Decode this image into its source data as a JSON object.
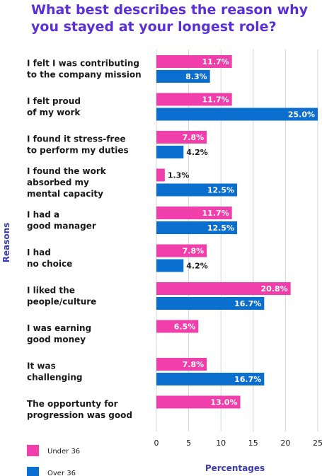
{
  "chart_data": {
    "type": "bar",
    "orientation": "horizontal",
    "title": "What best describes the reason why you stayed at your longest role?",
    "xlabel": "Percentages",
    "ylabel": "Reasons",
    "xlim": [
      0,
      25
    ],
    "xticks": [
      "0",
      "5",
      "10",
      "15",
      "20",
      "25"
    ],
    "grid": true,
    "legend_position": "bottom-left",
    "categories": [
      [
        "I felt I was contributing",
        "to the company mission"
      ],
      [
        "I felt proud",
        "of my work"
      ],
      [
        "I found it stress-free",
        "to perform my duties"
      ],
      [
        "I found the work",
        "absorbed my",
        "mental capacity"
      ],
      [
        "I had a",
        "good manager"
      ],
      [
        "I had",
        "no choice"
      ],
      [
        "I liked the",
        "people/culture"
      ],
      [
        "I was earning",
        "good money"
      ],
      [
        "It was",
        "challenging"
      ],
      [
        "The opportunty for",
        "progression was good"
      ]
    ],
    "series": [
      {
        "name": "Under 36",
        "color": "#f03eab",
        "values": [
          11.7,
          11.7,
          7.8,
          1.3,
          11.7,
          7.8,
          20.8,
          6.5,
          7.8,
          13.0
        ],
        "labels": [
          "11.7%",
          "11.7%",
          "7.8%",
          "1.3%",
          "11.7%",
          "7.8%",
          "20.8%",
          "6.5%",
          "7.8%",
          "13.0%"
        ]
      },
      {
        "name": "Over 36",
        "color": "#0b6fcf",
        "values": [
          8.3,
          25.0,
          4.2,
          12.5,
          12.5,
          4.2,
          16.7,
          null,
          16.7,
          null
        ],
        "labels": [
          "8.3%",
          "25.0%",
          "4.2%",
          "12.5%",
          "12.5%",
          "4.2%",
          "16.7%",
          "",
          "16.7%",
          ""
        ]
      }
    ]
  },
  "title_color": "#5b2fd6"
}
